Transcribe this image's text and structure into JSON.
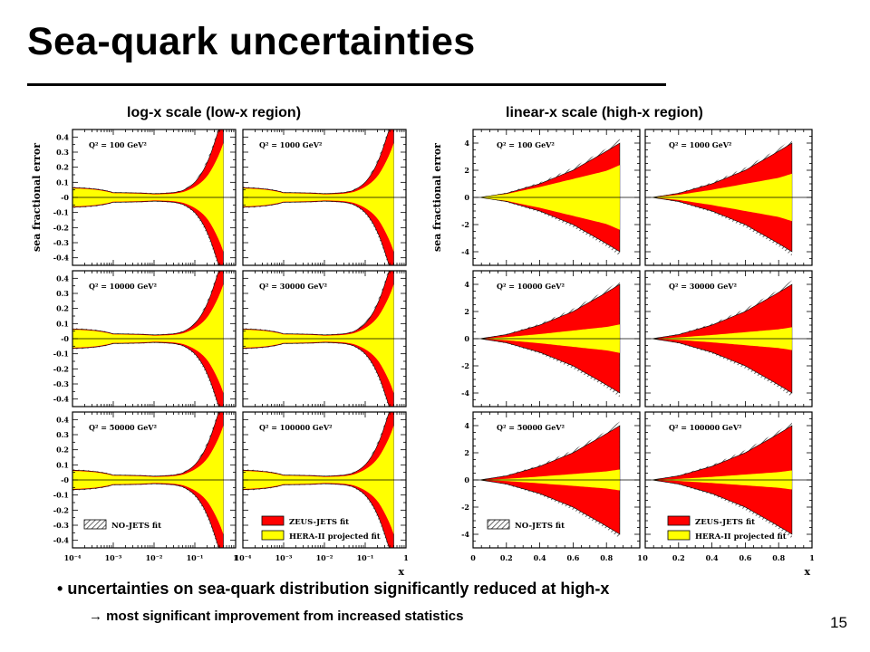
{
  "slide": {
    "title": "Sea-quark uncertainties",
    "left_section_label": "log-x scale (low-x region)",
    "right_section_label": "linear-x scale (high-x region)",
    "bullet_main": "uncertainties on sea-quark distribution significantly reduced at high-x",
    "bullet_main_symbol": "•",
    "bullet_sub": "most significant improvement from increased statistics",
    "bullet_sub_symbol": "→",
    "page_number": "15"
  },
  "colors": {
    "no_jets": "#444444",
    "zeus_jets": "#ff0000",
    "hera_ii": "#ffff00",
    "axis": "#000000"
  },
  "chart_data": [
    {
      "type": "area",
      "scale": "log-x",
      "ylabel": "sea fractional error",
      "xlabel": "x",
      "xlim": [
        0.0001,
        1
      ],
      "ylim": [
        -0.45,
        0.45
      ],
      "x_tick_labels": [
        "10⁻⁴",
        "10⁻³",
        "10⁻²",
        "10⁻¹",
        "1"
      ],
      "y_tick_labels": [
        "0.4",
        "0.3",
        "0.2",
        "0.1",
        "-0",
        "-0.1",
        "-0.2",
        "-0.3",
        "-0.4"
      ],
      "q2_labels": [
        "Q² = 100 GeV²",
        "Q² = 1000 GeV²",
        "Q² = 10000 GeV²",
        "Q² = 30000 GeV²",
        "Q² = 50000 GeV²",
        "Q² = 100000 GeV²"
      ],
      "x": [
        0.0001,
        0.001,
        0.01,
        0.03,
        0.05,
        0.1,
        0.2,
        0.3,
        0.5
      ],
      "series": [
        {
          "name": "NO-JETS fit",
          "band": [
            0.07,
            0.035,
            0.028,
            0.035,
            0.05,
            0.11,
            0.25,
            0.38,
            0.6
          ]
        },
        {
          "name": "ZEUS-JETS fit",
          "band": [
            0.065,
            0.032,
            0.025,
            0.032,
            0.045,
            0.1,
            0.23,
            0.36,
            0.57
          ]
        },
        {
          "name": "HERA-II projected fit",
          "band": [
            0.06,
            0.028,
            0.02,
            0.025,
            0.035,
            0.07,
            0.14,
            0.22,
            0.36
          ]
        }
      ]
    },
    {
      "type": "area",
      "scale": "linear-x",
      "ylabel": "sea fractional error",
      "xlabel": "x",
      "xlim": [
        0,
        1
      ],
      "ylim": [
        -5,
        5
      ],
      "x_tick_labels": [
        "0",
        "0.2",
        "0.4",
        "0.6",
        "0.8",
        "1"
      ],
      "y_tick_labels": [
        "4",
        "2",
        "0",
        "-2",
        "-4"
      ],
      "q2_labels": [
        "Q² = 100 GeV²",
        "Q² = 1000 GeV²",
        "Q² = 10000 GeV²",
        "Q² = 30000 GeV²",
        "Q² = 50000 GeV²",
        "Q² = 100000 GeV²"
      ],
      "x": [
        0.05,
        0.2,
        0.4,
        0.6,
        0.8,
        0.88
      ],
      "series": [
        {
          "name": "NO-JETS fit",
          "band": [
            0.02,
            0.35,
            1.1,
            2.2,
            3.6,
            4.3
          ]
        },
        {
          "name": "ZEUS-JETS fit",
          "band": [
            0.02,
            0.3,
            1.0,
            2.0,
            3.4,
            4.0
          ]
        },
        {
          "name": "HERA-II projected fit",
          "band": [
            0.01,
            0.15,
            0.45,
            0.8,
            1.15,
            1.4
          ]
        }
      ],
      "panel_hera_scale": [
        1.7,
        1.25,
        0.75,
        0.6,
        0.55,
        0.5
      ]
    }
  ]
}
